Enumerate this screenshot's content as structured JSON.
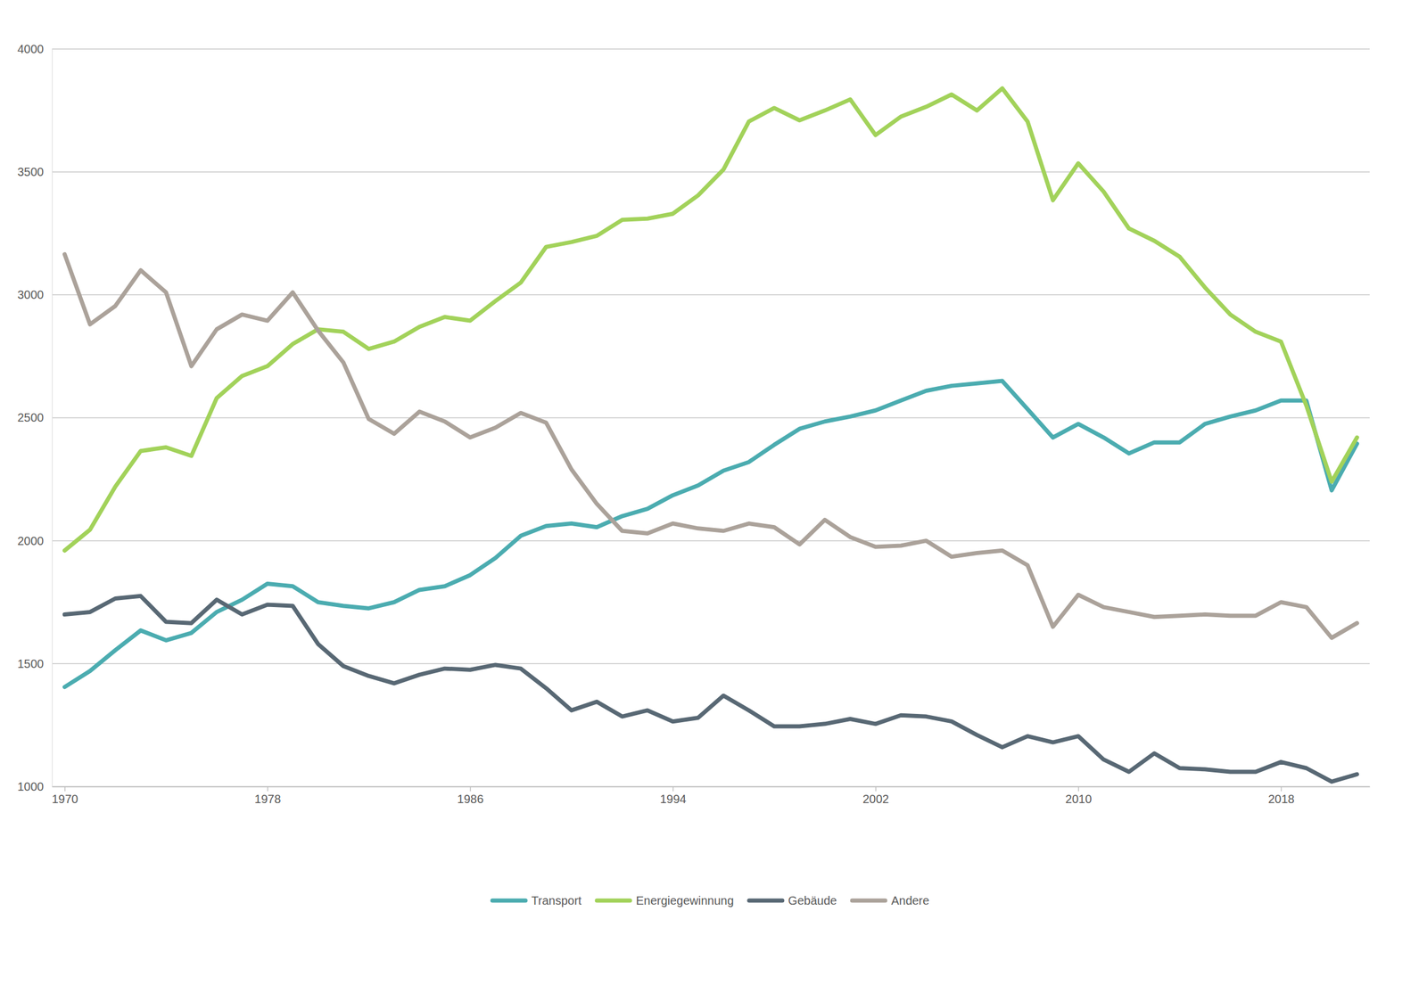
{
  "chart_data": {
    "type": "line",
    "x": [
      1970,
      1971,
      1972,
      1973,
      1974,
      1975,
      1976,
      1977,
      1978,
      1979,
      1980,
      1981,
      1982,
      1983,
      1984,
      1985,
      1986,
      1987,
      1988,
      1989,
      1990,
      1991,
      1992,
      1993,
      1994,
      1995,
      1996,
      1997,
      1998,
      1999,
      2000,
      2001,
      2002,
      2003,
      2004,
      2005,
      2006,
      2007,
      2008,
      2009,
      2010,
      2011,
      2012,
      2013,
      2014,
      2015,
      2016,
      2017,
      2018,
      2019,
      2020,
      2021
    ],
    "series": [
      {
        "name": "Transport",
        "color": "#4bacb0",
        "values": [
          1405,
          1470,
          1555,
          1635,
          1595,
          1625,
          1710,
          1760,
          1825,
          1815,
          1750,
          1735,
          1725,
          1750,
          1800,
          1815,
          1860,
          1930,
          2020,
          2060,
          2070,
          2055,
          2100,
          2130,
          2185,
          2225,
          2285,
          2320,
          2390,
          2455,
          2485,
          2505,
          2530,
          2570,
          2610,
          2630,
          2640,
          2650,
          2535,
          2420,
          2475,
          2420,
          2355,
          2400,
          2400,
          2475,
          2505,
          2530,
          2570,
          2570,
          2205,
          2395
        ]
      },
      {
        "name": "Energiegewinnung",
        "color": "#a2d25a",
        "values": [
          1960,
          2045,
          2220,
          2365,
          2380,
          2345,
          2580,
          2670,
          2710,
          2800,
          2860,
          2850,
          2780,
          2810,
          2870,
          2910,
          2895,
          2975,
          3050,
          3195,
          3215,
          3240,
          3305,
          3310,
          3330,
          3405,
          3510,
          3705,
          3760,
          3710,
          3750,
          3795,
          3650,
          3725,
          3765,
          3815,
          3750,
          3840,
          3705,
          3385,
          3535,
          3420,
          3270,
          3220,
          3155,
          3030,
          2920,
          2850,
          2810,
          2550,
          2240,
          2420
        ]
      },
      {
        "name": "Gebäude",
        "color": "#586874",
        "values": [
          1700,
          1710,
          1765,
          1775,
          1670,
          1665,
          1760,
          1700,
          1740,
          1735,
          1580,
          1490,
          1450,
          1420,
          1455,
          1480,
          1475,
          1495,
          1480,
          1400,
          1310,
          1345,
          1285,
          1310,
          1265,
          1280,
          1370,
          1310,
          1245,
          1245,
          1255,
          1275,
          1255,
          1290,
          1285,
          1265,
          1210,
          1160,
          1205,
          1180,
          1205,
          1110,
          1060,
          1135,
          1075,
          1070,
          1060,
          1060,
          1100,
          1075,
          1020,
          1050
        ]
      },
      {
        "name": "Andere",
        "color": "#aba29a",
        "values": [
          3165,
          2880,
          2955,
          3100,
          3010,
          2710,
          2860,
          2920,
          2895,
          3010,
          2855,
          2725,
          2495,
          2435,
          2525,
          2485,
          2420,
          2460,
          2520,
          2480,
          2290,
          2150,
          2040,
          2030,
          2070,
          2050,
          2040,
          2070,
          2055,
          1985,
          2085,
          2015,
          1975,
          1980,
          2000,
          1935,
          1950,
          1960,
          1900,
          1650,
          1780,
          1730,
          1710,
          1690,
          1695,
          1700,
          1695,
          1695,
          1750,
          1730,
          1605,
          1665
        ]
      }
    ],
    "xlim": [
      1969.5,
      2021.5
    ],
    "xticks": [
      1970,
      1978,
      1986,
      1994,
      2002,
      2010,
      2018
    ],
    "ylim": [
      1000,
      4000
    ],
    "yticks": [
      1000,
      1500,
      2000,
      2500,
      3000,
      3500,
      4000
    ],
    "grid": true,
    "legend": "bottom"
  }
}
